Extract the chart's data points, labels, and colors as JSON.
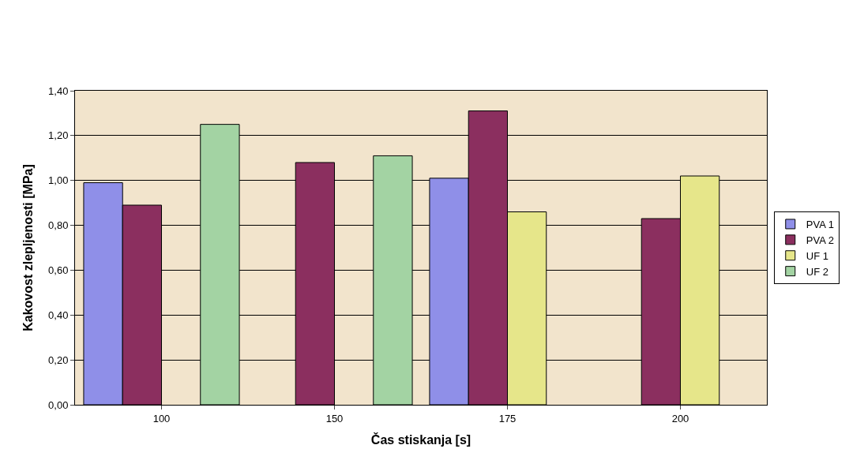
{
  "chart_data": {
    "type": "bar",
    "xlabel": "Čas stiskanja [s]",
    "ylabel": "Kakovost zlepljenosti [MPa]",
    "categories": [
      "100",
      "150",
      "175",
      "200"
    ],
    "series": [
      {
        "name": "PVA 1",
        "color": "#8f8fe8",
        "values": [
          0.99,
          null,
          1.01,
          null
        ]
      },
      {
        "name": "PVA 2",
        "color": "#8b2f5f",
        "values": [
          0.89,
          1.08,
          1.31,
          0.83
        ]
      },
      {
        "name": "UF 1",
        "color": "#e6e68a",
        "values": [
          null,
          null,
          0.86,
          1.02
        ]
      },
      {
        "name": "UF 2",
        "color": "#a3d3a3",
        "values": [
          1.25,
          1.11,
          null,
          null
        ]
      }
    ],
    "ylim": [
      0,
      1.4
    ],
    "yticks": [
      {
        "value": 0,
        "label": "0,00"
      },
      {
        "value": 0.2,
        "label": "0,20"
      },
      {
        "value": 0.4,
        "label": "0,40"
      },
      {
        "value": 0.6,
        "label": "0,60"
      },
      {
        "value": 0.8,
        "label": "0,80"
      },
      {
        "value": 1.0,
        "label": "1,00"
      },
      {
        "value": 1.2,
        "label": "1,20"
      },
      {
        "value": 1.4,
        "label": "1,40"
      }
    ],
    "grid": "y",
    "legend": "right"
  }
}
